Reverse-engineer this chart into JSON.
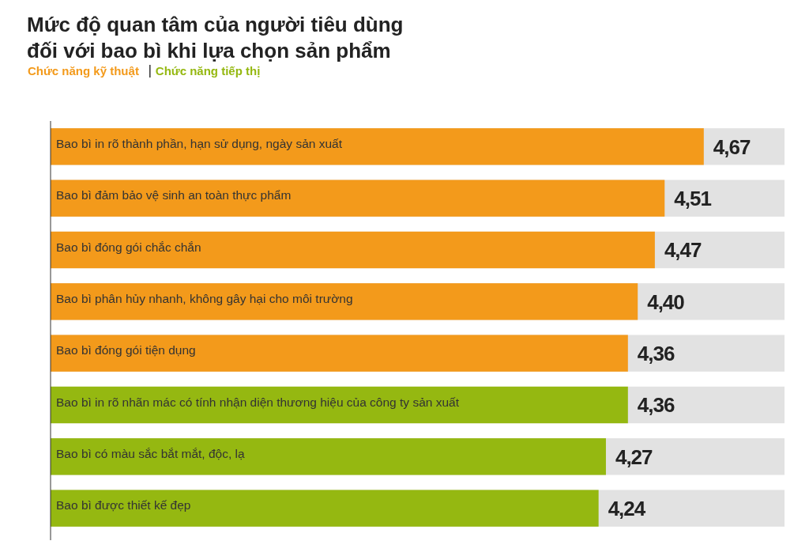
{
  "chart_data": {
    "type": "bar",
    "orientation": "horizontal",
    "title": "Mức độ quan tâm của người tiêu dùng\nđối với bao bì khi lựa chọn sản phẩm",
    "categories": [
      "Bao bì in rõ thành phần, hạn sử dụng, ngày sản xuất",
      "Bao bì đảm bảo vệ sinh an toàn thực phẩm",
      "Bao bì đóng gói chắc chắn",
      "Bao bì phân hủy nhanh, không gây hại cho môi trường",
      "Bao bì đóng gói tiện dụng",
      "Bao bì in rõ nhãn mác có tính nhận diện thương hiệu của công ty sản xuất",
      "Bao bì có màu sắc bắt mắt, độc, lạ",
      "Bao bì được thiết kế đẹp"
    ],
    "series": [
      {
        "name": "Chức năng kỹ thuật",
        "color": "#f39a1b",
        "values": [
          4.67,
          4.51,
          4.47,
          4.4,
          4.36,
          null,
          null,
          null
        ],
        "value_labels": [
          "4,67",
          "4,51",
          "4,47",
          "4,40",
          "4,36",
          null,
          null,
          null
        ]
      },
      {
        "name": "Chức năng tiếp thị",
        "color": "#95b811",
        "values": [
          null,
          null,
          null,
          null,
          null,
          4.36,
          4.27,
          4.24
        ],
        "value_labels": [
          null,
          null,
          null,
          null,
          null,
          "4,36",
          "4,27",
          "4,24"
        ]
      }
    ],
    "xlim": [
      2,
      5
    ],
    "legend": "top left"
  }
}
